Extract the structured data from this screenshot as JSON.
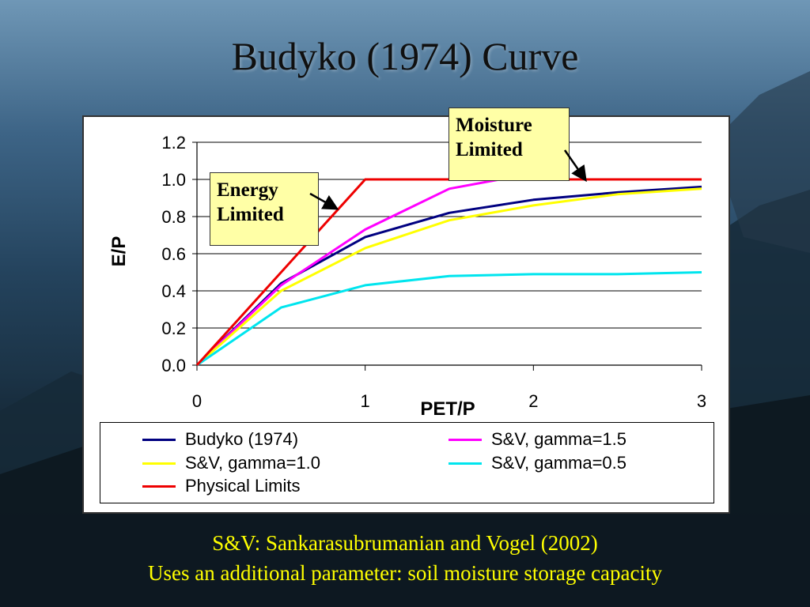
{
  "slide": {
    "title": "Budyko (1974) Curve",
    "footer_line1": "S&V: Sankarasubrumanian and Vogel (2002)",
    "footer_line2": "Uses an additional parameter: soil moisture storage capacity"
  },
  "callouts": {
    "energy_line1": "Energy",
    "energy_line2": "Limited",
    "moisture_line1": "Moisture",
    "moisture_line2": "Limited"
  },
  "colors": {
    "footer_text": "#ffff00",
    "callout_fill": "#ffffa6"
  },
  "chart_data": {
    "type": "line",
    "xlabel": "PET/P",
    "ylabel": "E/P",
    "xlim": [
      0,
      3
    ],
    "ylim": [
      0,
      1.2
    ],
    "x_ticks": [
      "0",
      "1",
      "2",
      "3"
    ],
    "y_ticks": [
      "0.0",
      "0.2",
      "0.4",
      "0.6",
      "0.8",
      "1.0",
      "1.2"
    ],
    "grid": true,
    "legend_position": "bottom",
    "series": [
      {
        "name": "Budyko (1974)",
        "color": "#000080",
        "points": [
          [
            0,
            0
          ],
          [
            0.5,
            0.44
          ],
          [
            1,
            0.69
          ],
          [
            1.5,
            0.82
          ],
          [
            2,
            0.89
          ],
          [
            2.5,
            0.93
          ],
          [
            3,
            0.96
          ]
        ]
      },
      {
        "name": "S&V, gamma=1.5",
        "color": "#ff00ff",
        "points": [
          [
            0,
            0
          ],
          [
            0.5,
            0.43
          ],
          [
            1,
            0.73
          ],
          [
            1.5,
            0.95
          ],
          [
            1.8,
            1.0
          ],
          [
            3,
            1.0
          ]
        ]
      },
      {
        "name": "S&V, gamma=1.0",
        "color": "#ffff00",
        "points": [
          [
            0,
            0
          ],
          [
            0.5,
            0.4
          ],
          [
            1,
            0.63
          ],
          [
            1.5,
            0.78
          ],
          [
            2,
            0.86
          ],
          [
            2.5,
            0.92
          ],
          [
            3,
            0.95
          ]
        ]
      },
      {
        "name": "S&V, gamma=0.5",
        "color": "#00e5ee",
        "points": [
          [
            0,
            0
          ],
          [
            0.5,
            0.31
          ],
          [
            1,
            0.43
          ],
          [
            1.5,
            0.48
          ],
          [
            2,
            0.49
          ],
          [
            2.5,
            0.49
          ],
          [
            3,
            0.5
          ]
        ]
      },
      {
        "name": "Physical Limits",
        "color": "#ee0000",
        "points": [
          [
            0,
            0
          ],
          [
            1,
            1.0
          ],
          [
            3,
            1.0
          ]
        ]
      }
    ]
  }
}
